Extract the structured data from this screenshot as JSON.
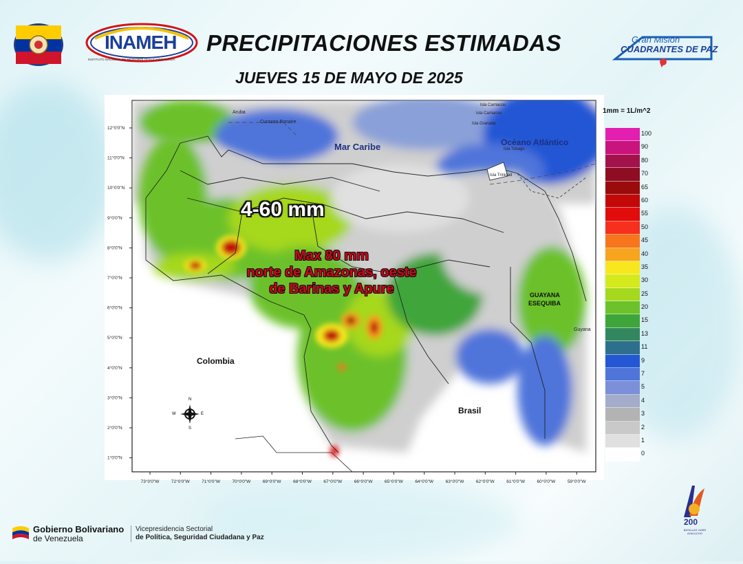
{
  "header": {
    "title": "PRECIPITACIONES ESTIMADAS",
    "subtitle": "JUEVES 15 DE MAYO DE 2025"
  },
  "logos": {
    "seal": "seal-logo",
    "inameh": "INAMEH",
    "inameh_sub": "INSTITUTO NACIONAL DE METEOROLOGÍA E HIDROLOGÍA",
    "gran_mision_top": "Gran Misión",
    "gran_mision_bottom": "CUADRANTES DE PAZ"
  },
  "map": {
    "lat_labels": [
      "12°0'0\"N",
      "11°0'0\"N",
      "10°0'0\"N",
      "9°0'0\"N",
      "8°0'0\"N",
      "7°0'0\"N",
      "6°0'0\"N",
      "5°0'0\"N",
      "4°0'0\"N",
      "3°0'0\"N",
      "2°0'0\"N",
      "1°0'0\"N"
    ],
    "lon_labels": [
      "73°0'0\"W",
      "72°0'0\"W",
      "71°0'0\"W",
      "70°0'0\"W",
      "69°0'0\"W",
      "68°0'0\"W",
      "67°0'0\"W",
      "66°0'0\"W",
      "65°0'0\"W",
      "64°0'0\"W",
      "63°0'0\"W",
      "62°0'0\"W",
      "61°0'0\"W",
      "60°0'0\"W",
      "59°0'0\"W"
    ],
    "places": {
      "aruba": "Aruba",
      "curazao": "Curazao  Bonaire",
      "mar_caribe": "Mar Caribe",
      "oceano": "Océano Atlántico",
      "granada_1": "Isla Carriacou",
      "granada_2": "Isla Carriacou",
      "granada_3": "Isla Granada",
      "tobago": "Isla Tobago",
      "trinidad": "Isla Trinidad",
      "colombia": "Colombia",
      "brasil": "Brasil",
      "guayana_1": "GUAYANA",
      "guayana_2": "ESEQUIBA",
      "guyana": "Guyana"
    },
    "compass": {
      "n": "N",
      "s": "S",
      "e": "E",
      "w": "W"
    },
    "annotation_range": "4-60 mm",
    "annotation_max_1": "Max 80 mm",
    "annotation_max_2": "norte de Amazonas, oeste",
    "annotation_max_3": "de Barinas y Apure"
  },
  "legend": {
    "title": "1mm = 1L/m^2",
    "items": [
      {
        "value": "100",
        "color": "#e21fb0"
      },
      {
        "value": "90",
        "color": "#c9137d"
      },
      {
        "value": "80",
        "color": "#a3124a"
      },
      {
        "value": "70",
        "color": "#8e0d22"
      },
      {
        "value": "65",
        "color": "#9a0b0b"
      },
      {
        "value": "60",
        "color": "#c30808"
      },
      {
        "value": "55",
        "color": "#e10c0c"
      },
      {
        "value": "50",
        "color": "#f5301c"
      },
      {
        "value": "45",
        "color": "#f7761c"
      },
      {
        "value": "40",
        "color": "#f7a51c"
      },
      {
        "value": "35",
        "color": "#f7e71c"
      },
      {
        "value": "30",
        "color": "#d5ea1a"
      },
      {
        "value": "25",
        "color": "#a6d81d"
      },
      {
        "value": "20",
        "color": "#6cc12c"
      },
      {
        "value": "15",
        "color": "#3fa53a"
      },
      {
        "value": "13",
        "color": "#32875f"
      },
      {
        "value": "11",
        "color": "#2f6f8e"
      },
      {
        "value": "9",
        "color": "#2357d4"
      },
      {
        "value": "7",
        "color": "#4f74da"
      },
      {
        "value": "5",
        "color": "#7b90d8"
      },
      {
        "value": "4",
        "color": "#a4acc9"
      },
      {
        "value": "3",
        "color": "#b3b3b3"
      },
      {
        "value": "2",
        "color": "#c9c9c9"
      },
      {
        "value": "1",
        "color": "#e0e0e0"
      },
      {
        "value": "0",
        "color": "#ffffff"
      }
    ]
  },
  "footer": {
    "gob_1": "Gobierno Bolivariano",
    "gob_2": "de Venezuela",
    "vice_1": "Vicepresidencia Sectorial",
    "vice_2": "de Política, Seguridad Ciudadana y Paz",
    "bicent": "200",
    "bicent_sub": "BATALLAS JUNÍN AYACUCHO"
  }
}
